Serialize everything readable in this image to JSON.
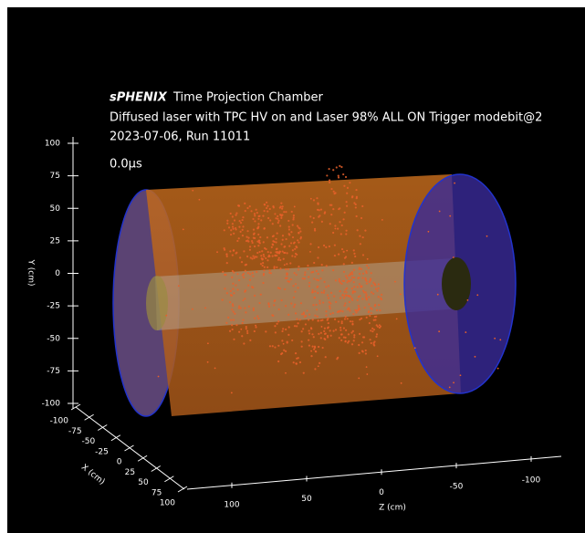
{
  "title": {
    "experiment": "sPHENIX",
    "detector": "Time Projection Chamber"
  },
  "subtitle": "Diffused laser with TPC HV on and Laser 98% ALL ON Trigger modebit@2",
  "run": "2023-07-06, Run 11011",
  "time": "0.0μs",
  "axes": {
    "y": {
      "label": "Y (cm)",
      "lim": [
        -100,
        100
      ],
      "ticks": [
        -100,
        -75,
        -50,
        -25,
        0,
        25,
        50,
        75,
        100
      ]
    },
    "x": {
      "label": "X (cm)",
      "lim": [
        -100,
        100
      ],
      "ticks": [
        -100,
        -75,
        -50,
        -25,
        0,
        25,
        50,
        75,
        100
      ]
    },
    "z": {
      "label": "Z (cm)",
      "lim": [
        -100,
        100
      ],
      "ticks": [
        100,
        50,
        0,
        -50,
        -100
      ]
    }
  }
}
